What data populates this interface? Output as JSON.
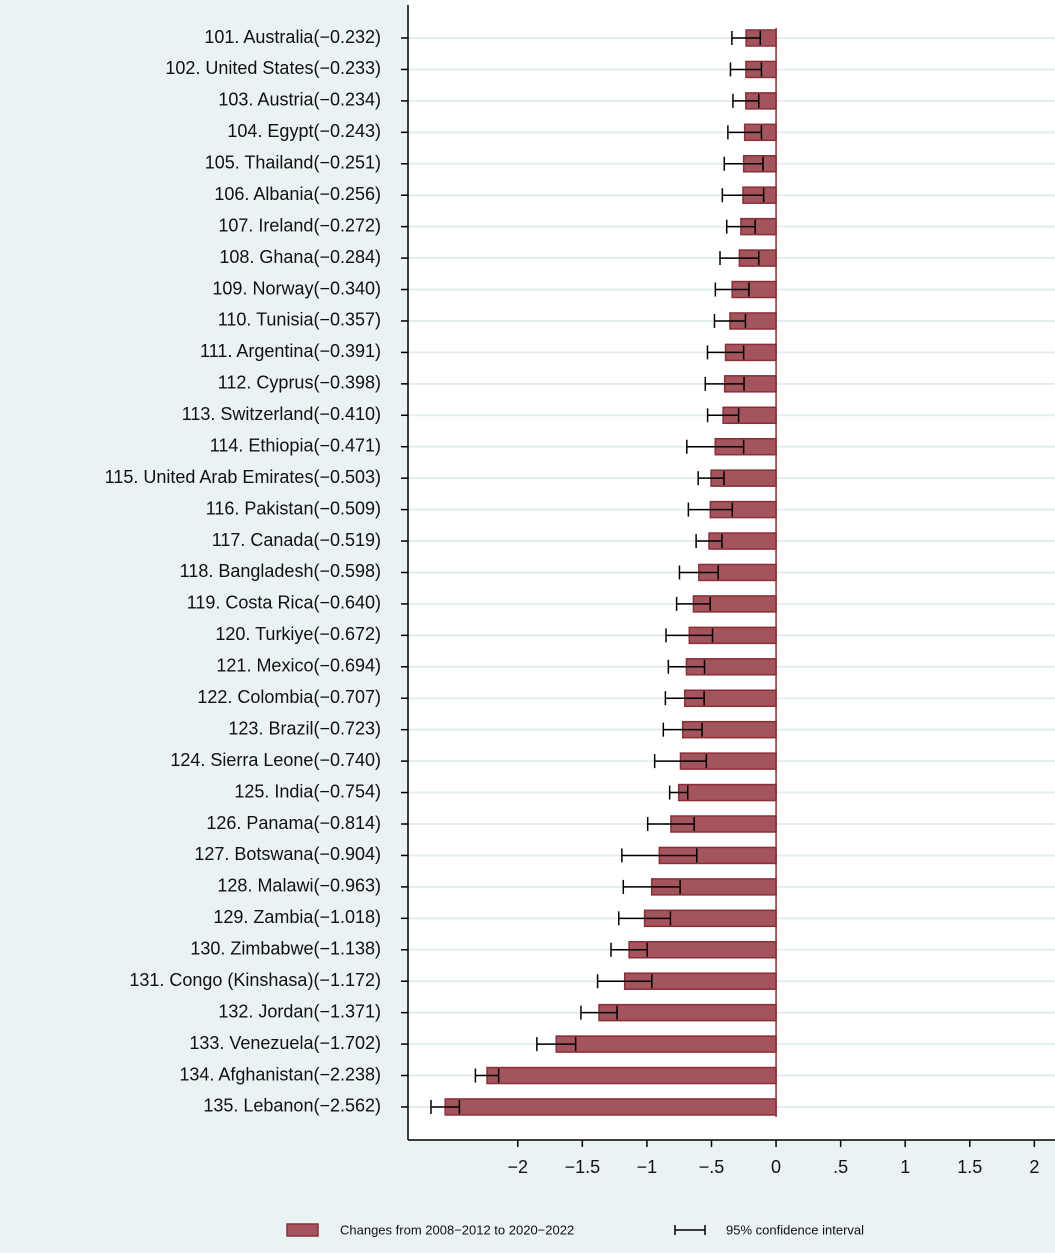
{
  "chart_data": {
    "type": "bar",
    "orientation": "horizontal",
    "categories": [
      "101. Australia(−0.232)",
      "102. United States(−0.233)",
      "103. Austria(−0.234)",
      "104. Egypt(−0.243)",
      "105. Thailand(−0.251)",
      "106. Albania(−0.256)",
      "107. Ireland(−0.272)",
      "108. Ghana(−0.284)",
      "109. Norway(−0.340)",
      "110. Tunisia(−0.357)",
      "111. Argentina(−0.391)",
      "112. Cyprus(−0.398)",
      "113. Switzerland(−0.410)",
      "114. Ethiopia(−0.471)",
      "115. United Arab Emirates(−0.503)",
      "116. Pakistan(−0.509)",
      "117. Canada(−0.519)",
      "118. Bangladesh(−0.598)",
      "119. Costa Rica(−0.640)",
      "120. Turkiye(−0.672)",
      "121. Mexico(−0.694)",
      "122. Colombia(−0.707)",
      "123. Brazil(−0.723)",
      "124. Sierra Leone(−0.740)",
      "125. India(−0.754)",
      "126. Panama(−0.814)",
      "127. Botswana(−0.904)",
      "128. Malawi(−0.963)",
      "129. Zambia(−1.018)",
      "130. Zimbabwe(−1.138)",
      "131. Congo (Kinshasa)(−1.172)",
      "132. Jordan(−1.371)",
      "133. Venezuela(−1.702)",
      "134. Afghanistan(−2.238)",
      "135. Lebanon(−2.562)"
    ],
    "series": [
      {
        "name": "Changes from 2008−2012 to 2020−2022",
        "color": "#a4545c",
        "edge": "#8a2f38",
        "values": [
          -0.232,
          -0.233,
          -0.234,
          -0.243,
          -0.251,
          -0.256,
          -0.272,
          -0.284,
          -0.34,
          -0.357,
          -0.391,
          -0.398,
          -0.41,
          -0.471,
          -0.503,
          -0.509,
          -0.519,
          -0.598,
          -0.64,
          -0.672,
          -0.694,
          -0.707,
          -0.723,
          -0.74,
          -0.754,
          -0.814,
          -0.904,
          -0.963,
          -1.018,
          -1.138,
          -1.172,
          -1.371,
          -1.702,
          -2.238,
          -2.562
        ],
        "errors": [
          0.11,
          0.12,
          0.1,
          0.13,
          0.15,
          0.16,
          0.11,
          0.15,
          0.13,
          0.12,
          0.14,
          0.15,
          0.12,
          0.22,
          0.1,
          0.17,
          0.1,
          0.15,
          0.13,
          0.18,
          0.14,
          0.15,
          0.15,
          0.2,
          0.07,
          0.18,
          0.29,
          0.22,
          0.2,
          0.14,
          0.21,
          0.14,
          0.15,
          0.09,
          0.11
        ]
      }
    ],
    "error_name": "95% confidence interval",
    "xlim": [
      -2.85,
      2.16
    ],
    "xticks": [
      {
        "value": -2,
        "label": "−2"
      },
      {
        "value": -1.5,
        "label": "−1.5"
      },
      {
        "value": -1,
        "label": "−1"
      },
      {
        "value": -0.5,
        "label": "−.5"
      },
      0,
      {
        "value": 0.5,
        "label": ".5"
      },
      1,
      1.5,
      2
    ],
    "grid": true
  }
}
